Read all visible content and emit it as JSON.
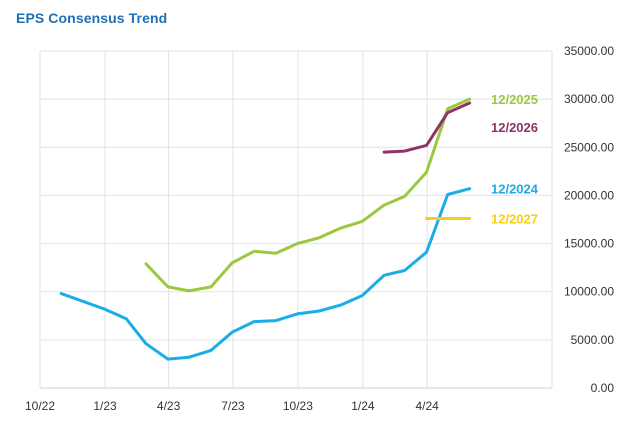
{
  "title": "EPS Consensus Trend",
  "chart_data": {
    "type": "line",
    "title": "EPS Consensus Trend",
    "xlabel": "",
    "ylabel": "",
    "x_ticks": [
      "10/22",
      "1/23",
      "4/23",
      "7/23",
      "10/23",
      "1/24",
      "4/24"
    ],
    "y_ticks": [
      "35000.00",
      "30000.00",
      "25000.00",
      "20000.00",
      "15000.00",
      "10000.00",
      "5000.00",
      "0.00"
    ],
    "ylim": [
      0,
      35000
    ],
    "y_axis_side": "right",
    "grid": true,
    "series": [
      {
        "name": "12/2024",
        "color": "#1aade6",
        "points": [
          [
            "2022-10-31",
            9800
          ],
          [
            "2022-12-31",
            8200
          ],
          [
            "2023-01-31",
            7200
          ],
          [
            "2023-02-28",
            4600
          ],
          [
            "2023-03-31",
            3000
          ],
          [
            "2023-04-30",
            3200
          ],
          [
            "2023-05-31",
            3900
          ],
          [
            "2023-06-30",
            5800
          ],
          [
            "2023-07-31",
            6900
          ],
          [
            "2023-08-31",
            7000
          ],
          [
            "2023-09-30",
            7700
          ],
          [
            "2023-10-31",
            8000
          ],
          [
            "2023-11-30",
            8600
          ],
          [
            "2023-12-31",
            9600
          ],
          [
            "2024-01-31",
            11700
          ],
          [
            "2024-02-29",
            12200
          ],
          [
            "2024-03-31",
            14100
          ],
          [
            "2024-04-30",
            20100
          ],
          [
            "2024-05-31",
            20700
          ]
        ]
      },
      {
        "name": "12/2025",
        "color": "#9cc83f",
        "points": [
          [
            "2023-02-28",
            12900
          ],
          [
            "2023-03-31",
            10500
          ],
          [
            "2023-04-30",
            10100
          ],
          [
            "2023-05-31",
            10500
          ],
          [
            "2023-06-30",
            13000
          ],
          [
            "2023-07-31",
            14200
          ],
          [
            "2023-08-31",
            14000
          ],
          [
            "2023-09-30",
            15000
          ],
          [
            "2023-10-31",
            15600
          ],
          [
            "2023-11-30",
            16600
          ],
          [
            "2023-12-31",
            17300
          ],
          [
            "2024-01-31",
            19000
          ],
          [
            "2024-02-29",
            19900
          ],
          [
            "2024-03-31",
            22400
          ],
          [
            "2024-04-30",
            29000
          ],
          [
            "2024-05-31",
            30000
          ]
        ]
      },
      {
        "name": "12/2026",
        "color": "#8e3468",
        "points": [
          [
            "2024-01-31",
            24500
          ],
          [
            "2024-02-29",
            24600
          ],
          [
            "2024-03-31",
            25200
          ],
          [
            "2024-04-30",
            28600
          ],
          [
            "2024-05-31",
            29600
          ]
        ]
      },
      {
        "name": "12/2027",
        "color": "#f5cf10",
        "points": [
          [
            "2024-03-31",
            17600
          ],
          [
            "2024-04-30",
            17600
          ],
          [
            "2024-05-31",
            17600
          ]
        ]
      }
    ],
    "legend": "inline at line ends"
  }
}
